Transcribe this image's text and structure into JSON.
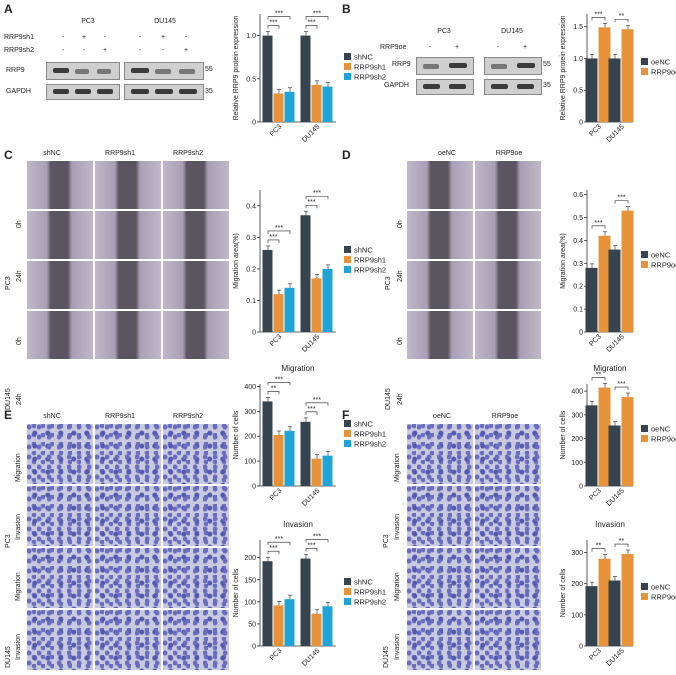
{
  "panels": {
    "A": {
      "letter": "A",
      "cells": [
        "PC3",
        "DU145"
      ],
      "rows": [
        "RRP9sh1",
        "RRP9sh2"
      ],
      "signs_sh1": [
        "-",
        "+",
        "-",
        "-",
        "+",
        "-"
      ],
      "signs_sh2": [
        "-",
        "-",
        "+",
        "-",
        "-",
        "+"
      ],
      "proteins": [
        "RRP9",
        "GAPDH"
      ],
      "mw": [
        "55",
        "35"
      ]
    },
    "B": {
      "letter": "B",
      "cells": [
        "PC3",
        "DU145"
      ],
      "row": "RRP9oe",
      "signs": [
        "-",
        "+",
        "-",
        "+"
      ],
      "proteins": [
        "RRP9",
        "GAPDH"
      ],
      "mw": [
        "55",
        "35"
      ]
    },
    "C": {
      "letter": "C",
      "cols": [
        "shNC",
        "RRP9sh1",
        "RRP9sh2"
      ],
      "cells": [
        "PC3",
        "DU145"
      ],
      "times": [
        "0h",
        "24h"
      ]
    },
    "D": {
      "letter": "D",
      "cols": [
        "oeNC",
        "RRP9oe"
      ],
      "cells": [
        "PC3",
        "DU145"
      ],
      "times": [
        "0h",
        "24h"
      ]
    },
    "E": {
      "letter": "E",
      "cols": [
        "shNC",
        "RRP9sh1",
        "RRP9sh2"
      ],
      "cells": [
        "PC3",
        "DU145"
      ],
      "assays": [
        "Migration",
        "Invasion"
      ]
    },
    "F": {
      "letter": "F",
      "cols": [
        "oeNC",
        "RRP9oe"
      ],
      "cells": [
        "PC3",
        "DU145"
      ],
      "assays": [
        "Migration",
        "Invasion"
      ]
    }
  },
  "colors": {
    "navy": "#36444f",
    "orange": "#e8923a",
    "blue": "#1fa4d8"
  },
  "chart_data": [
    {
      "id": "A",
      "type": "bar",
      "categories": [
        "PC3",
        "DU145"
      ],
      "ylabel": "Relative RRP9 protein expression",
      "ylim": [
        0,
        1.25
      ],
      "yticks": [
        0,
        0.5,
        1.0
      ],
      "ytick_labels": [
        "0",
        "0.5",
        "1.0"
      ],
      "series": [
        {
          "name": "shNC",
          "values": [
            1.0,
            1.0
          ]
        },
        {
          "name": "RRP9sh1",
          "values": [
            0.33,
            0.43
          ]
        },
        {
          "name": "RRP9sh2",
          "values": [
            0.35,
            0.41
          ]
        }
      ],
      "sig": [
        [
          "***",
          "***"
        ],
        [
          "***",
          "***"
        ]
      ]
    },
    {
      "id": "B",
      "type": "bar",
      "categories": [
        "PC3",
        "DU145"
      ],
      "ylabel": "Relative RRP9 protein expression",
      "ylim": [
        0,
        1.7
      ],
      "yticks": [
        0,
        0.5,
        1.0,
        1.5
      ],
      "ytick_labels": [
        "0",
        "0.5",
        "1.0",
        "1.5"
      ],
      "series": [
        {
          "name": "oeNC",
          "values": [
            1.0,
            1.0
          ]
        },
        {
          "name": "RRP9oe",
          "values": [
            1.49,
            1.46
          ]
        }
      ],
      "sig": [
        [
          "***"
        ],
        [
          "**"
        ]
      ]
    },
    {
      "id": "C",
      "type": "bar",
      "categories": [
        "PC3",
        "DU145"
      ],
      "ylabel": "Migration area(%)",
      "ylim": [
        0,
        0.45
      ],
      "yticks": [
        0,
        0.1,
        0.2,
        0.3,
        0.4
      ],
      "ytick_labels": [
        "0",
        "0.1",
        "0.2",
        "0.3",
        "0.4"
      ],
      "series": [
        {
          "name": "shNC",
          "values": [
            0.26,
            0.37
          ]
        },
        {
          "name": "RRP9sh1",
          "values": [
            0.12,
            0.17
          ]
        },
        {
          "name": "RRP9sh2",
          "values": [
            0.14,
            0.2
          ]
        }
      ],
      "sig": [
        [
          "***",
          "***"
        ],
        [
          "***",
          "***"
        ]
      ]
    },
    {
      "id": "D",
      "type": "bar",
      "categories": [
        "PC3",
        "DU145"
      ],
      "ylabel": "Migration area(%)",
      "ylim": [
        0,
        0.62
      ],
      "yticks": [
        0,
        0.1,
        0.2,
        0.3,
        0.4,
        0.5,
        0.6
      ],
      "ytick_labels": [
        "0",
        "0.1",
        "0.2",
        "0.3",
        "0.4",
        "0.5",
        "0.6"
      ],
      "series": [
        {
          "name": "oeNC",
          "values": [
            0.28,
            0.36
          ]
        },
        {
          "name": "RRP9oe",
          "values": [
            0.42,
            0.53
          ]
        }
      ],
      "sig": [
        [
          "***"
        ],
        [
          "***"
        ]
      ]
    },
    {
      "id": "E1",
      "type": "bar",
      "title": "Migration",
      "categories": [
        "PC3",
        "DU145"
      ],
      "ylabel": "Number of cells",
      "ylim": [
        0,
        410
      ],
      "yticks": [
        0,
        100,
        200,
        300,
        400
      ],
      "ytick_labels": [
        "0",
        "100",
        "200",
        "300",
        "400"
      ],
      "series": [
        {
          "name": "shNC",
          "values": [
            340,
            258
          ]
        },
        {
          "name": "RRP9sh1",
          "values": [
            205,
            110
          ]
        },
        {
          "name": "RRP9sh2",
          "values": [
            222,
            122
          ]
        }
      ],
      "sig": [
        [
          "**",
          "***"
        ],
        [
          "***",
          "***"
        ]
      ]
    },
    {
      "id": "E2",
      "type": "bar",
      "title": "Invasion",
      "categories": [
        "PC3",
        "DU145"
      ],
      "ylabel": "Number of cells",
      "ylim": [
        0,
        240
      ],
      "yticks": [
        0,
        50,
        100,
        150,
        200
      ],
      "ytick_labels": [
        "0",
        "50",
        "100",
        "150",
        "200"
      ],
      "series": [
        {
          "name": "shNC",
          "values": [
            192,
            198
          ]
        },
        {
          "name": "RRP9sh1",
          "values": [
            92,
            73
          ]
        },
        {
          "name": "RRP9sh2",
          "values": [
            106,
            90
          ]
        }
      ],
      "sig": [
        [
          "***",
          "***"
        ],
        [
          "***",
          "***"
        ]
      ]
    },
    {
      "id": "F1",
      "type": "bar",
      "title": "Migration",
      "categories": [
        "PC3",
        "DU145"
      ],
      "ylabel": "Number of cells",
      "ylim": [
        0,
        430
      ],
      "yticks": [
        0,
        100,
        200,
        300,
        400
      ],
      "ytick_labels": [
        "0",
        "100",
        "200",
        "300",
        "400"
      ],
      "series": [
        {
          "name": "oeNC",
          "values": [
            340,
            255
          ]
        },
        {
          "name": "RRP9oe",
          "values": [
            415,
            375
          ]
        }
      ],
      "sig": [
        [
          "**"
        ],
        [
          "***"
        ]
      ]
    },
    {
      "id": "F2",
      "type": "bar",
      "title": "Invasion",
      "categories": [
        "PC3",
        "DU145"
      ],
      "ylabel": "Number of cells",
      "ylim": [
        0,
        340
      ],
      "yticks": [
        0,
        100,
        200,
        300
      ],
      "ytick_labels": [
        "0",
        "100",
        "200",
        "300"
      ],
      "series": [
        {
          "name": "oeNC",
          "values": [
            192,
            210
          ]
        },
        {
          "name": "RRP9oe",
          "values": [
            280,
            295
          ]
        }
      ],
      "sig": [
        [
          "**"
        ],
        [
          "**"
        ]
      ]
    }
  ]
}
